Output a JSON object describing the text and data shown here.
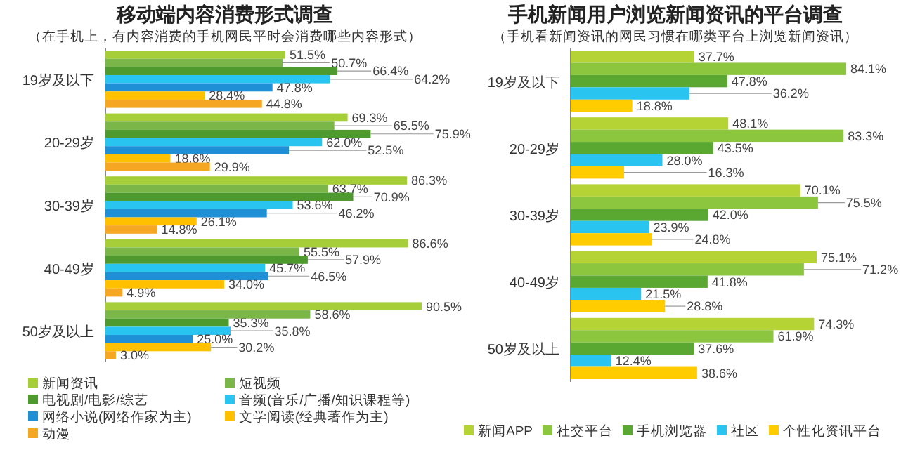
{
  "chart_data": [
    {
      "type": "bar",
      "orientation": "horizontal",
      "title": "移动端内容消费形式调查",
      "subtitle": "（在手机上，有内容消费的手机网民平时会消费哪些内容形式）",
      "categories": [
        "19岁及以下",
        "20-29岁",
        "30-39岁",
        "40-49岁",
        "50岁及以上"
      ],
      "legend": "bottom",
      "series": [
        {
          "name": "新闻资讯",
          "color": "#a6ce39",
          "values": [
            51.5,
            69.3,
            86.3,
            86.6,
            90.5
          ],
          "value_labels": [
            "51.5%",
            "69.3%",
            "86.3%",
            "86.6%",
            "90.5%"
          ]
        },
        {
          "name": "短视频",
          "color": "#7ab648",
          "values": [
            50.7,
            65.5,
            63.7,
            55.5,
            58.6
          ],
          "value_labels": [
            "50.7%",
            "65.5%",
            "63.7%",
            "55.5%",
            "58.6%"
          ]
        },
        {
          "name": "电视剧/电影/综艺",
          "color": "#4e9a2f",
          "values": [
            66.4,
            75.9,
            70.9,
            57.9,
            35.3
          ],
          "value_labels": [
            "66.4%",
            "75.9%",
            "70.9%",
            "57.9%",
            "35.3%"
          ]
        },
        {
          "name": "音频(音乐/广播/知识课程等)",
          "color": "#29c4f0",
          "values": [
            64.2,
            62.0,
            53.6,
            45.7,
            35.8
          ],
          "value_labels": [
            "64.2%",
            "62.0%",
            "53.6%",
            "45.7%",
            "35.8%"
          ]
        },
        {
          "name": "网络小说(网络作家为主)",
          "color": "#1f8fd6",
          "values": [
            47.8,
            52.5,
            46.2,
            46.5,
            25.0
          ],
          "value_labels": [
            "47.8%",
            "52.5%",
            "46.2%",
            "46.5%",
            "25.0%"
          ]
        },
        {
          "name": "文学阅读(经典著作为主)",
          "color": "#ffc000",
          "values": [
            28.4,
            18.6,
            26.1,
            34.0,
            30.2
          ],
          "value_labels": [
            "28.4%",
            "18.6%",
            "26.1%",
            "34.0%",
            "30.2%"
          ]
        },
        {
          "name": "动漫",
          "color": "#f5a623",
          "values": [
            44.8,
            29.9,
            14.8,
            4.9,
            3.0
          ],
          "value_labels": [
            "44.8%",
            "29.9%",
            "14.8%",
            "4.9%",
            "3.0%"
          ]
        }
      ]
    },
    {
      "type": "bar",
      "orientation": "horizontal",
      "title": "手机新闻用户浏览新闻资讯的平台调查",
      "subtitle": "（手机看新闻资讯的网民习惯在哪类平台上浏览新闻资讯）",
      "categories": [
        "19岁及以下",
        "20-29岁",
        "30-39岁",
        "40-49岁",
        "50岁及以上"
      ],
      "legend": "bottom",
      "series": [
        {
          "name": "新闻APP",
          "color": "#b5d334",
          "values": [
            37.7,
            48.1,
            70.1,
            75.1,
            74.3
          ],
          "value_labels": [
            "37.7%",
            "48.1%",
            "70.1%",
            "75.1%",
            "74.3%"
          ]
        },
        {
          "name": "社交平台",
          "color": "#8cc63f",
          "values": [
            84.1,
            83.3,
            75.5,
            71.2,
            61.9
          ],
          "value_labels": [
            "84.1%",
            "83.3%",
            "75.5%",
            "71.2%",
            "61.9%"
          ]
        },
        {
          "name": "手机浏览器",
          "color": "#5aa832",
          "values": [
            47.8,
            43.5,
            42.0,
            41.8,
            37.6
          ],
          "value_labels": [
            "47.8%",
            "43.5%",
            "42.0%",
            "41.8%",
            "37.6%"
          ]
        },
        {
          "name": "社区",
          "color": "#29c4f0",
          "values": [
            36.2,
            28.0,
            23.9,
            21.5,
            12.4
          ],
          "value_labels": [
            "36.2%",
            "28.0%",
            "23.9%",
            "21.5%",
            "12.4%"
          ]
        },
        {
          "name": "个性化资讯平台",
          "color": "#ffcc00",
          "values": [
            18.8,
            16.3,
            24.8,
            28.8,
            38.6
          ],
          "value_labels": [
            "18.8%",
            "16.3%",
            "24.8%",
            "28.8%",
            "38.6%"
          ]
        }
      ]
    }
  ]
}
